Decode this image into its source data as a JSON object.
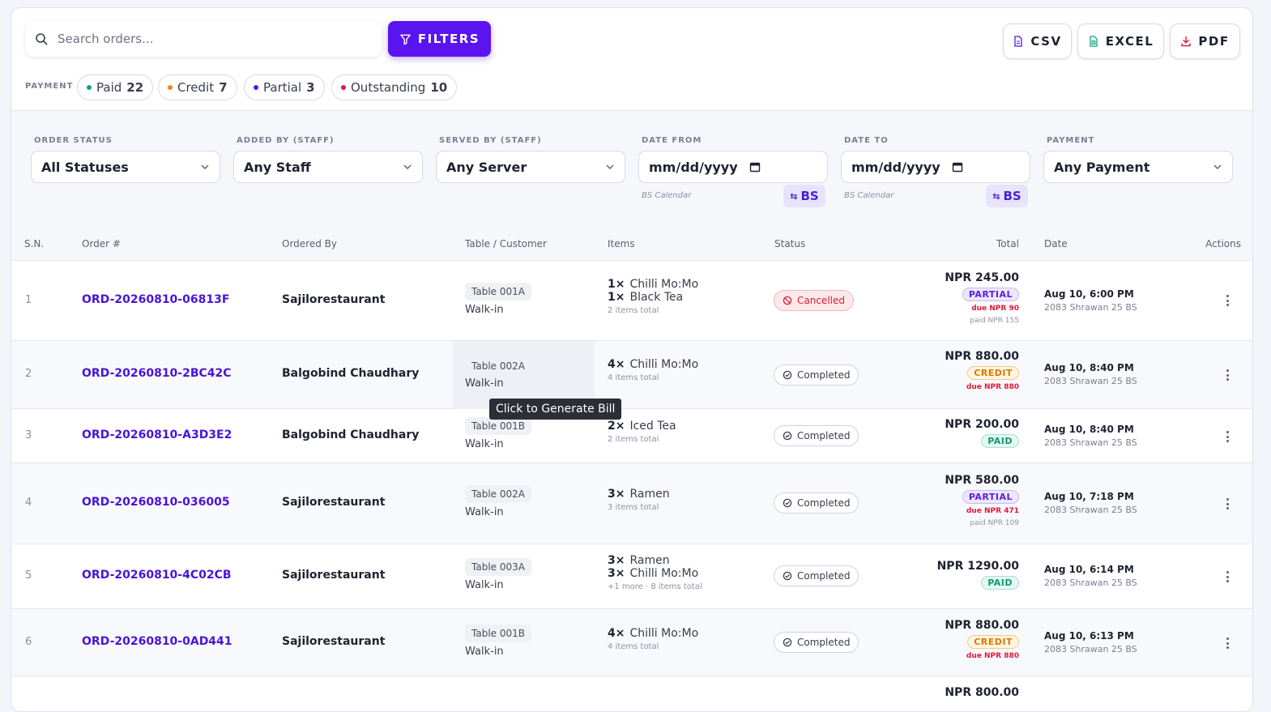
{
  "search": {
    "placeholder": "Search orders..."
  },
  "toolbar": {
    "filters_label": "FILTERS",
    "csv_label": "CSV",
    "excel_label": "EXCEL",
    "pdf_label": "PDF"
  },
  "payment_summary": {
    "label": "PAYMENT",
    "chips": [
      {
        "label": "Paid",
        "count": "22",
        "color": "#10a37f"
      },
      {
        "label": "Credit",
        "count": "7",
        "color": "#f08c1a"
      },
      {
        "label": "Partial",
        "count": "3",
        "color": "#5a14f0"
      },
      {
        "label": "Outstanding",
        "count": "10",
        "color": "#e0193a"
      }
    ]
  },
  "filters": {
    "order_status": {
      "label": "ORDER STATUS",
      "value": "All Statuses"
    },
    "added_by": {
      "label": "ADDED BY (STAFF)",
      "value": "Any Staff"
    },
    "served_by": {
      "label": "SERVED BY (STAFF)",
      "value": "Any Server"
    },
    "date_from": {
      "label": "DATE FROM",
      "value": "mm/dd/yyyy",
      "calendar_hint": "BS Calendar",
      "toggle_label": "BS"
    },
    "date_to": {
      "label": "DATE TO",
      "value": "mm/dd/yyyy",
      "calendar_hint": "BS Calendar",
      "toggle_label": "BS"
    },
    "payment": {
      "label": "PAYMENT",
      "value": "Any Payment"
    }
  },
  "table": {
    "columns": [
      "S.N.",
      "Order #",
      "Ordered By",
      "Table / Customer",
      "Items",
      "Status",
      "Total",
      "Date",
      "Actions"
    ],
    "rows": [
      {
        "sn": "1",
        "order": "ORD-20260810-06813F",
        "ordered_by": "Sajilorestaurant",
        "table": "Table 001A",
        "customer": "Walk-in",
        "items": [
          {
            "qty": "1×",
            "name": "Chilli Mo:Mo"
          },
          {
            "qty": "1×",
            "name": "Black Tea"
          }
        ],
        "items_total": "2 items total",
        "status": "Cancelled",
        "total": "NPR 245.00",
        "payment": "PARTIAL",
        "due": "due NPR 90",
        "paid": "paid NPR 155",
        "date": "Aug 10, 6:00 PM",
        "date_bs": "2083 Shrawan 25 BS"
      },
      {
        "sn": "2",
        "order": "ORD-20260810-2BC42C",
        "ordered_by": "Balgobind Chaudhary",
        "table": "Table 002A",
        "customer": "Walk-in",
        "items": [
          {
            "qty": "4×",
            "name": "Chilli Mo:Mo"
          }
        ],
        "items_total": "4 items total",
        "status": "Completed",
        "total": "NPR 880.00",
        "payment": "CREDIT",
        "due": "due NPR 880",
        "paid": "",
        "date": "Aug 10, 8:40 PM",
        "date_bs": "2083 Shrawan 25 BS"
      },
      {
        "sn": "3",
        "order": "ORD-20260810-A3D3E2",
        "ordered_by": "Balgobind Chaudhary",
        "table": "Table 001B",
        "customer": "Walk-in",
        "items": [
          {
            "qty": "2×",
            "name": "Iced Tea"
          }
        ],
        "items_total": "2 items total",
        "status": "Completed",
        "total": "NPR 200.00",
        "payment": "PAID",
        "due": "",
        "paid": "",
        "date": "Aug 10, 8:40 PM",
        "date_bs": "2083 Shrawan 25 BS"
      },
      {
        "sn": "4",
        "order": "ORD-20260810-036005",
        "ordered_by": "Sajilorestaurant",
        "table": "Table 002A",
        "customer": "Walk-in",
        "items": [
          {
            "qty": "3×",
            "name": "Ramen"
          }
        ],
        "items_total": "3 items total",
        "status": "Completed",
        "total": "NPR 580.00",
        "payment": "PARTIAL",
        "due": "due NPR 471",
        "paid": "paid NPR 109",
        "date": "Aug 10, 7:18 PM",
        "date_bs": "2083 Shrawan 25 BS"
      },
      {
        "sn": "5",
        "order": "ORD-20260810-4C02CB",
        "ordered_by": "Sajilorestaurant",
        "table": "Table 003A",
        "customer": "Walk-in",
        "items": [
          {
            "qty": "3×",
            "name": "Ramen"
          },
          {
            "qty": "3×",
            "name": "Chilli Mo:Mo"
          }
        ],
        "items_total": "+1 more · 8 items total",
        "status": "Completed",
        "total": "NPR 1290.00",
        "payment": "PAID",
        "due": "",
        "paid": "",
        "date": "Aug 10, 6:14 PM",
        "date_bs": "2083 Shrawan 25 BS"
      },
      {
        "sn": "6",
        "order": "ORD-20260810-0AD441",
        "ordered_by": "Sajilorestaurant",
        "table": "Table 001B",
        "customer": "Walk-in",
        "items": [
          {
            "qty": "4×",
            "name": "Chilli Mo:Mo"
          }
        ],
        "items_total": "4 items total",
        "status": "Completed",
        "total": "NPR 880.00",
        "payment": "CREDIT",
        "due": "due NPR 880",
        "paid": "",
        "date": "Aug 10, 6:13 PM",
        "date_bs": "2083 Shrawan 25 BS"
      },
      {
        "sn": "",
        "order": "",
        "ordered_by": "",
        "table": "",
        "customer": "",
        "items": [],
        "items_total": "",
        "status": "",
        "total": "NPR 800.00",
        "payment": "",
        "due": "",
        "paid": "",
        "date": "",
        "date_bs": ""
      }
    ]
  },
  "tooltip": {
    "text": "Click to Generate Bill"
  },
  "colors": {
    "accent": "#5a14f0",
    "link": "#4a14d8",
    "danger": "#e0193a",
    "success": "#0e9a74",
    "warning": "#d77a00"
  }
}
